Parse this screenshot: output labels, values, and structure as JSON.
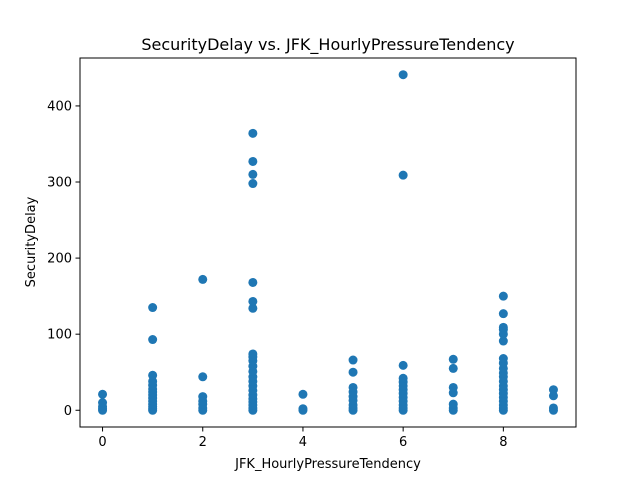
{
  "chart_data": {
    "type": "scatter",
    "title": "SecurityDelay vs. JFK_HourlyPressureTendency",
    "xlabel": "JFK_HourlyPressureTendency",
    "ylabel": "SecurityDelay",
    "xlim": [
      -0.45,
      9.45
    ],
    "ylim": [
      -22,
      463
    ],
    "xticks": [
      0,
      2,
      4,
      6,
      8
    ],
    "yticks": [
      0,
      100,
      200,
      300,
      400
    ],
    "grid": false,
    "marker_color": "#1f77b4",
    "points": [
      {
        "x": 0,
        "y": 0
      },
      {
        "x": 0,
        "y": 2
      },
      {
        "x": 0,
        "y": 5
      },
      {
        "x": 0,
        "y": 10
      },
      {
        "x": 0,
        "y": 21
      },
      {
        "x": 1,
        "y": 0
      },
      {
        "x": 1,
        "y": 2
      },
      {
        "x": 1,
        "y": 5
      },
      {
        "x": 1,
        "y": 8
      },
      {
        "x": 1,
        "y": 12
      },
      {
        "x": 1,
        "y": 16
      },
      {
        "x": 1,
        "y": 20
      },
      {
        "x": 1,
        "y": 24
      },
      {
        "x": 1,
        "y": 28
      },
      {
        "x": 1,
        "y": 33
      },
      {
        "x": 1,
        "y": 38
      },
      {
        "x": 1,
        "y": 46
      },
      {
        "x": 1,
        "y": 93
      },
      {
        "x": 1,
        "y": 135
      },
      {
        "x": 2,
        "y": 0
      },
      {
        "x": 2,
        "y": 3
      },
      {
        "x": 2,
        "y": 8
      },
      {
        "x": 2,
        "y": 12
      },
      {
        "x": 2,
        "y": 18
      },
      {
        "x": 2,
        "y": 44
      },
      {
        "x": 2,
        "y": 172
      },
      {
        "x": 3,
        "y": 0
      },
      {
        "x": 3,
        "y": 3
      },
      {
        "x": 3,
        "y": 7
      },
      {
        "x": 3,
        "y": 11
      },
      {
        "x": 3,
        "y": 15
      },
      {
        "x": 3,
        "y": 20
      },
      {
        "x": 3,
        "y": 26
      },
      {
        "x": 3,
        "y": 32
      },
      {
        "x": 3,
        "y": 38
      },
      {
        "x": 3,
        "y": 44
      },
      {
        "x": 3,
        "y": 51
      },
      {
        "x": 3,
        "y": 58
      },
      {
        "x": 3,
        "y": 65
      },
      {
        "x": 3,
        "y": 70
      },
      {
        "x": 3,
        "y": 74
      },
      {
        "x": 3,
        "y": 134
      },
      {
        "x": 3,
        "y": 143
      },
      {
        "x": 3,
        "y": 168
      },
      {
        "x": 3,
        "y": 298
      },
      {
        "x": 3,
        "y": 310
      },
      {
        "x": 3,
        "y": 327
      },
      {
        "x": 3,
        "y": 364
      },
      {
        "x": 4,
        "y": 0
      },
      {
        "x": 4,
        "y": 2
      },
      {
        "x": 4,
        "y": 21
      },
      {
        "x": 5,
        "y": 0
      },
      {
        "x": 5,
        "y": 3
      },
      {
        "x": 5,
        "y": 7
      },
      {
        "x": 5,
        "y": 13
      },
      {
        "x": 5,
        "y": 18
      },
      {
        "x": 5,
        "y": 24
      },
      {
        "x": 5,
        "y": 30
      },
      {
        "x": 5,
        "y": 50
      },
      {
        "x": 5,
        "y": 66
      },
      {
        "x": 6,
        "y": 0
      },
      {
        "x": 6,
        "y": 3
      },
      {
        "x": 6,
        "y": 7
      },
      {
        "x": 6,
        "y": 12
      },
      {
        "x": 6,
        "y": 17
      },
      {
        "x": 6,
        "y": 22
      },
      {
        "x": 6,
        "y": 27
      },
      {
        "x": 6,
        "y": 32
      },
      {
        "x": 6,
        "y": 37
      },
      {
        "x": 6,
        "y": 42
      },
      {
        "x": 6,
        "y": 59
      },
      {
        "x": 6,
        "y": 309
      },
      {
        "x": 6,
        "y": 441
      },
      {
        "x": 7,
        "y": 0
      },
      {
        "x": 7,
        "y": 3
      },
      {
        "x": 7,
        "y": 8
      },
      {
        "x": 7,
        "y": 23
      },
      {
        "x": 7,
        "y": 30
      },
      {
        "x": 7,
        "y": 55
      },
      {
        "x": 7,
        "y": 67
      },
      {
        "x": 8,
        "y": 0
      },
      {
        "x": 8,
        "y": 3
      },
      {
        "x": 8,
        "y": 7
      },
      {
        "x": 8,
        "y": 12
      },
      {
        "x": 8,
        "y": 17
      },
      {
        "x": 8,
        "y": 22
      },
      {
        "x": 8,
        "y": 27
      },
      {
        "x": 8,
        "y": 32
      },
      {
        "x": 8,
        "y": 38
      },
      {
        "x": 8,
        "y": 44
      },
      {
        "x": 8,
        "y": 49
      },
      {
        "x": 8,
        "y": 55
      },
      {
        "x": 8,
        "y": 62
      },
      {
        "x": 8,
        "y": 68
      },
      {
        "x": 8,
        "y": 91
      },
      {
        "x": 8,
        "y": 100
      },
      {
        "x": 8,
        "y": 106
      },
      {
        "x": 8,
        "y": 109
      },
      {
        "x": 8,
        "y": 127
      },
      {
        "x": 8,
        "y": 150
      },
      {
        "x": 9,
        "y": 0
      },
      {
        "x": 9,
        "y": 3
      },
      {
        "x": 9,
        "y": 19
      },
      {
        "x": 9,
        "y": 27
      }
    ]
  }
}
